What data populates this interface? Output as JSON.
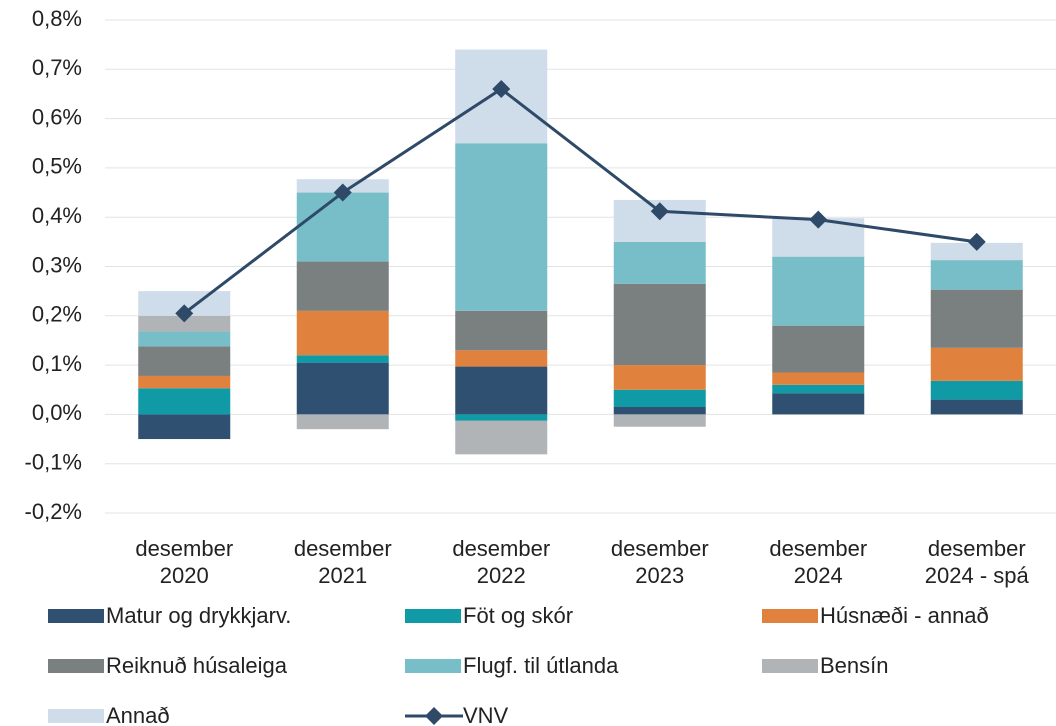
{
  "chart_data": {
    "type": "stacked_bar_line",
    "categories": [
      "desember 2020",
      "desember 2021",
      "desember 2022",
      "desember 2023",
      "desember 2024",
      "desember 2024 - spá"
    ],
    "series": [
      {
        "name": "Matur og drykkjarv.",
        "color": "#2f5070",
        "values": [
          -0.05,
          0.105,
          0.097,
          0.015,
          0.043,
          0.03
        ]
      },
      {
        "name": "Föt og skór",
        "color": "#0f9aa6",
        "values": [
          0.053,
          0.015,
          -0.013,
          0.035,
          0.017,
          0.038
        ]
      },
      {
        "name": "Húsnæði - annað",
        "color": "#e0823d",
        "values": [
          0.025,
          0.09,
          0.033,
          0.05,
          0.025,
          0.067
        ]
      },
      {
        "name": "Reiknuð húsaleiga",
        "color": "#7a7f80",
        "values": [
          0.06,
          0.1,
          0.08,
          0.165,
          0.095,
          0.118
        ]
      },
      {
        "name": "Flugf. til útlanda",
        "color": "#78bec9",
        "values": [
          0.03,
          0.14,
          0.34,
          0.085,
          0.14,
          0.06
        ]
      },
      {
        "name": "Bensín",
        "color": "#b0b4b6",
        "values": [
          0.032,
          -0.03,
          -0.068,
          -0.025,
          0,
          0
        ]
      },
      {
        "name": "Annað",
        "color": "#cfdce9",
        "values": [
          0.05,
          0.027,
          0.19,
          0.085,
          0.078,
          0.035
        ]
      },
      {
        "name": "VNV",
        "color": "#2e4a68",
        "type": "line",
        "values": [
          0.205,
          0.45,
          0.66,
          0.412,
          0.395,
          0.35
        ]
      }
    ],
    "ylim": [
      -0.2,
      0.8
    ],
    "yticks": [
      {
        "value": -0.2,
        "label": "-0,2%"
      },
      {
        "value": -0.1,
        "label": "-0,1%"
      },
      {
        "value": 0,
        "label": "0,0%"
      },
      {
        "value": 0.1,
        "label": "0,1%"
      },
      {
        "value": 0.2,
        "label": "0,2%"
      },
      {
        "value": 0.3,
        "label": "0,3%"
      },
      {
        "value": 0.4,
        "label": "0,4%"
      },
      {
        "value": 0.5,
        "label": "0,5%"
      },
      {
        "value": 0.6,
        "label": "0,6%"
      },
      {
        "value": 0.7,
        "label": "0,7%"
      },
      {
        "value": 0.8,
        "label": "0,8%"
      }
    ],
    "grid": true
  }
}
